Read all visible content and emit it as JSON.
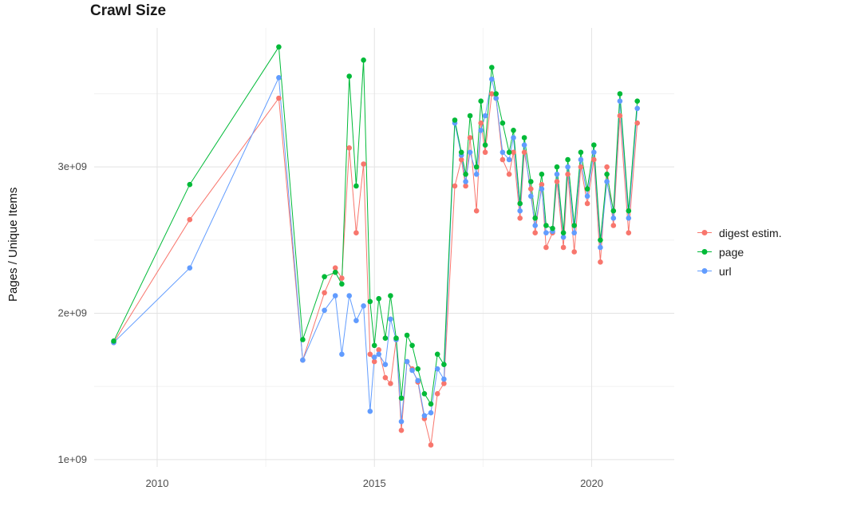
{
  "title": "Crawl Size",
  "axes": {
    "y_label": "Pages / Unique Items",
    "y_tick_labels": [
      "1e+09",
      "2e+09",
      "3e+09"
    ],
    "x_tick_labels": [
      "2010",
      "2015",
      "2020"
    ]
  },
  "legend": {
    "items": [
      {
        "label": "digest estim.",
        "color": "#F8766D"
      },
      {
        "label": "page",
        "color": "#00BA38"
      },
      {
        "label": "url",
        "color": "#619CFF"
      }
    ]
  },
  "chart_data": {
    "type": "scatter",
    "title": "Crawl Size",
    "xlabel": "",
    "ylabel": "Pages / Unique Items",
    "y_unit": 1000000000,
    "grid": true,
    "legend_position": "right",
    "xlim": [
      2008.55,
      2021.9
    ],
    "ylim": [
      0.95,
      3.95
    ],
    "x_tick_values": [
      2010,
      2015,
      2020
    ],
    "x_tick_labels": [
      "2010",
      "2015",
      "2020"
    ],
    "y_tick_values": [
      1,
      2,
      3
    ],
    "y_tick_labels": [
      "1e+09",
      "2e+09",
      "3e+09"
    ],
    "x_minor_ticks": [
      2012.5,
      2017.5
    ],
    "y_minor_ticks": [
      1.5,
      2.5,
      3.5
    ],
    "x": [
      2009.0,
      2010.75,
      2012.8,
      2013.35,
      2013.85,
      2014.1,
      2014.25,
      2014.42,
      2014.58,
      2014.75,
      2014.9,
      2015.0,
      2015.1,
      2015.25,
      2015.37,
      2015.5,
      2015.62,
      2015.75,
      2015.87,
      2016.0,
      2016.15,
      2016.3,
      2016.45,
      2016.6,
      2016.85,
      2017.0,
      2017.1,
      2017.2,
      2017.35,
      2017.45,
      2017.55,
      2017.7,
      2017.8,
      2017.95,
      2018.1,
      2018.2,
      2018.35,
      2018.45,
      2018.6,
      2018.7,
      2018.85,
      2018.95,
      2019.1,
      2019.2,
      2019.35,
      2019.45,
      2019.6,
      2019.75,
      2019.9,
      2020.05,
      2020.2,
      2020.35,
      2020.5,
      2020.65,
      2020.85,
      2021.05
    ],
    "series": [
      {
        "name": "digest estim.",
        "color": "#F8766D",
        "values": [
          1.8,
          2.64,
          3.47,
          1.68,
          2.14,
          2.31,
          2.24,
          3.13,
          2.55,
          3.02,
          1.72,
          1.67,
          1.75,
          1.56,
          1.52,
          1.82,
          1.2,
          1.67,
          1.62,
          1.53,
          1.28,
          1.1,
          1.45,
          1.52,
          2.87,
          3.05,
          2.87,
          3.2,
          2.7,
          3.3,
          3.1,
          3.5,
          3.47,
          3.05,
          2.95,
          3.1,
          2.65,
          3.1,
          2.85,
          2.55,
          2.88,
          2.45,
          2.55,
          2.9,
          2.45,
          2.95,
          2.42,
          3.0,
          2.75,
          3.05,
          2.35,
          3.0,
          2.6,
          3.35,
          2.55,
          3.3
        ]
      },
      {
        "name": "page",
        "color": "#00BA38",
        "values": [
          1.81,
          2.88,
          3.82,
          1.82,
          2.25,
          2.28,
          2.2,
          3.62,
          2.87,
          3.73,
          2.08,
          1.78,
          2.1,
          1.83,
          2.12,
          1.83,
          1.42,
          1.85,
          1.78,
          1.62,
          1.45,
          1.38,
          1.72,
          1.65,
          3.32,
          3.1,
          2.95,
          3.35,
          3.0,
          3.45,
          3.15,
          3.68,
          3.5,
          3.3,
          3.1,
          3.25,
          2.75,
          3.2,
          2.9,
          2.65,
          2.95,
          2.6,
          2.58,
          3.0,
          2.55,
          3.05,
          2.6,
          3.1,
          2.85,
          3.15,
          2.5,
          2.95,
          2.7,
          3.5,
          2.7,
          3.45
        ]
      },
      {
        "name": "url",
        "color": "#619CFF",
        "values": [
          1.8,
          2.31,
          3.61,
          1.68,
          2.02,
          2.12,
          1.72,
          2.12,
          1.95,
          2.05,
          1.33,
          1.7,
          1.72,
          1.65,
          1.96,
          1.82,
          1.26,
          1.67,
          1.61,
          1.54,
          1.3,
          1.32,
          1.62,
          1.55,
          3.3,
          3.08,
          2.9,
          3.1,
          2.95,
          3.25,
          3.35,
          3.6,
          3.47,
          3.1,
          3.05,
          3.2,
          2.7,
          3.15,
          2.8,
          2.6,
          2.85,
          2.55,
          2.56,
          2.95,
          2.52,
          3.0,
          2.55,
          3.05,
          2.8,
          3.1,
          2.45,
          2.9,
          2.65,
          3.45,
          2.65,
          3.4
        ]
      }
    ]
  }
}
